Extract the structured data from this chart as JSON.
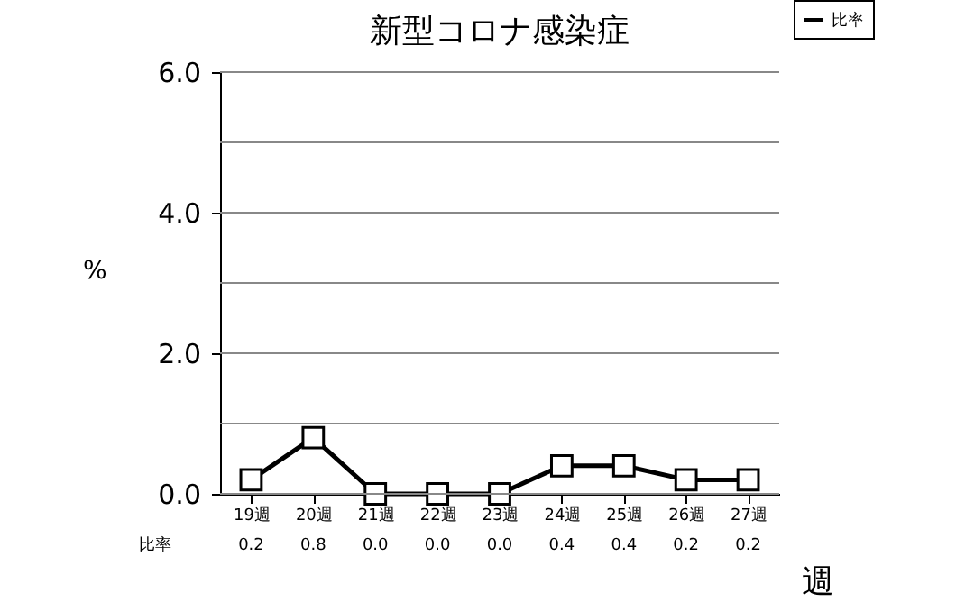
{
  "chart_data": {
    "type": "line",
    "title": "新型コロナ感染症",
    "xlabel": "週",
    "ylabel": "%",
    "categories": [
      "19週",
      "20週",
      "21週",
      "22週",
      "23週",
      "24週",
      "25週",
      "26週",
      "27週"
    ],
    "series": [
      {
        "name": "比率",
        "color": "#000000",
        "values": [
          0.2,
          0.8,
          0.0,
          0.0,
          0.0,
          0.4,
          0.4,
          0.2,
          0.2
        ],
        "value_labels": [
          "0.2",
          "0.8",
          "0.0",
          "0.0",
          "0.0",
          "0.4",
          "0.4",
          "0.2",
          "0.2"
        ]
      }
    ],
    "ylim": [
      0,
      6
    ],
    "yticks": [
      {
        "value": 0,
        "label": "0.0"
      },
      {
        "value": 1,
        "label": null
      },
      {
        "value": 2,
        "label": "2.0"
      },
      {
        "value": 3,
        "label": null
      },
      {
        "value": 4,
        "label": "4.0"
      },
      {
        "value": 5,
        "label": null
      },
      {
        "value": 6,
        "label": "6.0"
      }
    ],
    "grid": "y",
    "marker": "square",
    "line_style": "solid",
    "legend": "top right"
  }
}
